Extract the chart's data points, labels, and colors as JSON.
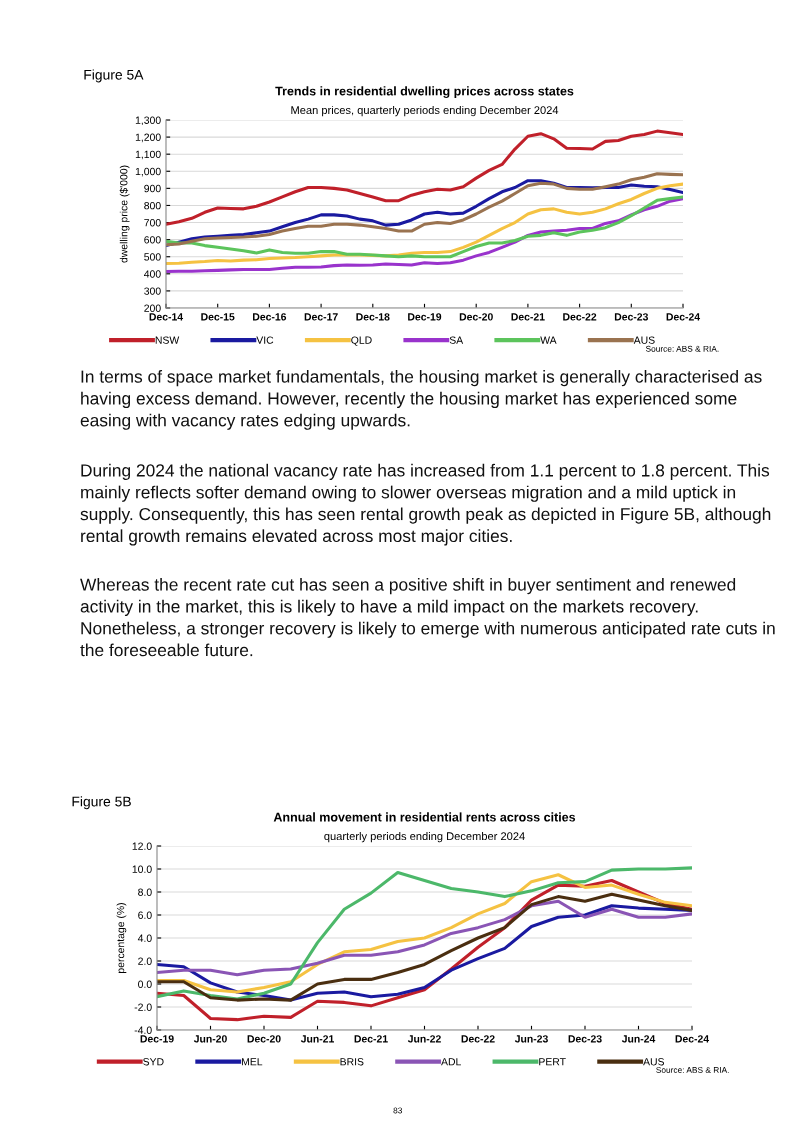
{
  "chart_data": [
    {
      "type": "line",
      "title": "Trends in residential dwelling prices across states",
      "subtitle": "Mean prices, quarterly periods ending December 2024",
      "ylabel": "dwelling price ($'000)",
      "categories": [
        "Dec-14",
        null,
        null,
        null,
        "Dec-15",
        null,
        null,
        null,
        "Dec-16",
        null,
        null,
        null,
        "Dec-17",
        null,
        null,
        null,
        "Dec-18",
        null,
        null,
        null,
        "Dec-19",
        null,
        null,
        null,
        "Dec-20",
        null,
        null,
        null,
        "Dec-21",
        null,
        null,
        null,
        "Dec-22",
        null,
        null,
        null,
        "Dec-23",
        null,
        null,
        null,
        "Dec-24"
      ],
      "series": [
        {
          "name": "NSW",
          "color": "#c0202a",
          "values": [
            690,
            705,
            725,
            760,
            785,
            782,
            780,
            795,
            820,
            850,
            880,
            905,
            905,
            900,
            890,
            870,
            850,
            828,
            828,
            860,
            880,
            895,
            890,
            910,
            960,
            1005,
            1040,
            1130,
            1205,
            1220,
            1190,
            1135,
            1133,
            1130,
            1175,
            1180,
            1205,
            1215,
            1235,
            1225,
            1215
          ]
        },
        {
          "name": "VIC",
          "color": "#1a1aa0",
          "values": [
            565,
            585,
            605,
            615,
            620,
            625,
            630,
            640,
            650,
            675,
            700,
            720,
            745,
            745,
            738,
            720,
            710,
            685,
            690,
            715,
            750,
            760,
            750,
            755,
            795,
            840,
            880,
            905,
            945,
            945,
            930,
            905,
            905,
            903,
            905,
            905,
            920,
            912,
            910,
            893,
            875
          ]
        },
        {
          "name": "QLD",
          "color": "#f5c242",
          "values": [
            460,
            462,
            468,
            472,
            478,
            475,
            480,
            482,
            490,
            492,
            495,
            500,
            505,
            510,
            512,
            510,
            508,
            505,
            510,
            520,
            525,
            525,
            530,
            555,
            585,
            625,
            665,
            700,
            750,
            775,
            780,
            760,
            750,
            760,
            780,
            810,
            835,
            870,
            900,
            915,
            925
          ]
        },
        {
          "name": "SA",
          "color": "#9933cc",
          "values": [
            413,
            415,
            415,
            418,
            420,
            423,
            425,
            425,
            425,
            432,
            438,
            438,
            440,
            448,
            452,
            450,
            452,
            458,
            455,
            452,
            465,
            460,
            465,
            480,
            505,
            525,
            555,
            585,
            625,
            645,
            650,
            655,
            665,
            665,
            695,
            710,
            745,
            775,
            795,
            825,
            840
          ]
        },
        {
          "name": "WA",
          "color": "#5cc45c",
          "values": [
            590,
            580,
            580,
            565,
            555,
            545,
            535,
            522,
            540,
            525,
            520,
            520,
            530,
            530,
            515,
            515,
            510,
            505,
            500,
            505,
            500,
            500,
            500,
            530,
            560,
            580,
            580,
            595,
            620,
            625,
            640,
            625,
            645,
            655,
            670,
            700,
            740,
            785,
            830,
            840,
            850
          ]
        },
        {
          "name": "AUS",
          "color": "#9a7350",
          "values": [
            570,
            575,
            590,
            605,
            610,
            612,
            615,
            620,
            630,
            650,
            665,
            678,
            678,
            690,
            690,
            685,
            675,
            665,
            650,
            650,
            690,
            700,
            695,
            715,
            750,
            790,
            825,
            870,
            915,
            930,
            925,
            900,
            895,
            895,
            910,
            925,
            950,
            965,
            985,
            982,
            980
          ]
        }
      ],
      "ylim": [
        200,
        1300
      ],
      "yticks": [
        200,
        300,
        400,
        500,
        600,
        700,
        800,
        900,
        {
          "value": 1000,
          "label": "1,000"
        },
        {
          "value": 1100,
          "label": "1,100"
        },
        {
          "value": 1200,
          "label": "1,200"
        },
        {
          "value": 1300,
          "label": "1,300"
        }
      ],
      "grid": "y",
      "legend": "bottom",
      "annotations": [
        "Figure 5A",
        "Source: ABS & RIA."
      ]
    },
    {
      "type": "other",
      "annotations": [
        "In terms of space market fundamentals, the housing market is generally characterised as having excess demand. However, recently the housing market has experienced some easing with vacancy rates edging upwards.",
        "During 2024 the national vacancy rate has increased from 1.1 percent to 1.8 percent. This mainly reflects softer demand owing to slower overseas migration and a mild uptick in supply. Consequently, this has seen rental growth peak as depicted in Figure 5B, although rental growth remains elevated across most major cities.",
        "Whereas the recent rate cut has seen a positive shift in buyer sentiment and renewed activity in the market, this is likely to have a mild impact on the markets recovery. Nonetheless, a stronger recovery is likely to emerge with numerous anticipated rate cuts in the foreseeable future."
      ]
    },
    {
      "type": "line",
      "title": "Annual movement in residential rents across cities",
      "subtitle": "quarterly periods ending December 2024",
      "ylabel": "percentage (%)",
      "categories": [
        "Dec-19",
        null,
        "Jun-20",
        null,
        "Dec-20",
        null,
        "Jun-21",
        null,
        "Dec-21",
        null,
        "Jun-22",
        null,
        "Dec-22",
        null,
        "Jun-23",
        null,
        "Dec-23",
        null,
        "Jun-24",
        null,
        "Dec-24"
      ],
      "series": [
        {
          "name": "SYD",
          "color": "#c0202a",
          "values": [
            -0.8,
            -1.0,
            -3.0,
            -3.1,
            -2.8,
            -2.9,
            -1.5,
            -1.6,
            -1.9,
            -1.2,
            -0.5,
            1.3,
            3.2,
            4.9,
            7.3,
            8.6,
            8.5,
            9.0,
            8.0,
            7.0,
            6.5
          ]
        },
        {
          "name": "MEL",
          "color": "#1a1aa0",
          "values": [
            1.7,
            1.5,
            0.1,
            -0.7,
            -1.0,
            -1.4,
            -0.8,
            -0.7,
            -1.1,
            -0.9,
            -0.3,
            1.2,
            2.2,
            3.1,
            5.0,
            5.8,
            6.0,
            6.8,
            6.6,
            6.5,
            6.4
          ]
        },
        {
          "name": "BRIS",
          "color": "#f5c242",
          "values": [
            0.3,
            0.3,
            -0.5,
            -0.7,
            -0.3,
            0.2,
            1.7,
            2.8,
            3.0,
            3.7,
            4.0,
            4.9,
            6.1,
            7.0,
            8.9,
            9.5,
            8.4,
            8.6,
            7.8,
            7.1,
            6.8
          ]
        },
        {
          "name": "ADL",
          "color": "#8a55b5",
          "values": [
            1.0,
            1.2,
            1.2,
            0.8,
            1.2,
            1.3,
            1.8,
            2.5,
            2.5,
            2.8,
            3.4,
            4.4,
            4.9,
            5.6,
            6.8,
            7.2,
            5.8,
            6.5,
            5.8,
            5.8,
            6.1
          ]
        },
        {
          "name": "PERT",
          "color": "#4cb86a",
          "values": [
            -1.1,
            -0.6,
            -1.0,
            -1.3,
            -0.8,
            0.0,
            3.6,
            6.5,
            7.9,
            9.7,
            9.0,
            8.3,
            8.0,
            7.6,
            8.1,
            8.8,
            8.9,
            9.9,
            10.0,
            10.0,
            10.1
          ]
        },
        {
          "name": "AUS",
          "color": "#4a2e10",
          "values": [
            0.2,
            0.2,
            -1.2,
            -1.4,
            -1.3,
            -1.4,
            0.0,
            0.4,
            0.4,
            1.0,
            1.7,
            2.9,
            4.0,
            4.9,
            6.9,
            7.6,
            7.2,
            7.8,
            7.3,
            6.8,
            6.4
          ]
        }
      ],
      "ylim": [
        -4,
        12
      ],
      "yticks": [
        {
          "value": -4,
          "label": "-4.0"
        },
        {
          "value": -2,
          "label": "-2.0"
        },
        {
          "value": 0,
          "label": "0.0"
        },
        {
          "value": 2,
          "label": "2.0"
        },
        {
          "value": 4,
          "label": "4.0"
        },
        {
          "value": 6,
          "label": "6.0"
        },
        {
          "value": 8,
          "label": "8.0"
        },
        {
          "value": 10,
          "label": "10.0"
        },
        {
          "value": 12,
          "label": "12.0"
        }
      ],
      "grid": "y",
      "legend": "bottom",
      "annotations": [
        "Figure 5B",
        "Source: ABS & RIA.",
        "83"
      ]
    }
  ]
}
